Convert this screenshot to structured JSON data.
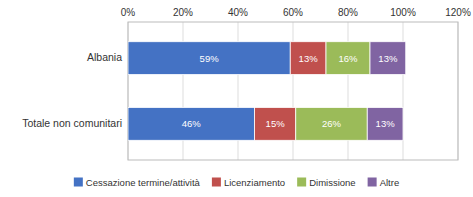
{
  "chart_data": {
    "type": "bar",
    "orientation": "horizontal",
    "stacked": true,
    "data_labels": true,
    "grid": true,
    "legend": "bottom",
    "categories": [
      "Albania",
      "Totale non comunitari"
    ],
    "series": [
      {
        "name": "Cessazione termine/attività",
        "color": "#4472C4",
        "values": [
          59,
          46
        ],
        "value_labels": [
          "59%",
          "46%"
        ]
      },
      {
        "name": "Licenziamento",
        "color": "#C0504D",
        "values": [
          13,
          15
        ],
        "value_labels": [
          "13%",
          "15%"
        ]
      },
      {
        "name": "Dimissione",
        "color": "#9BBB59",
        "values": [
          16,
          26
        ],
        "value_labels": [
          "16%",
          "26%"
        ]
      },
      {
        "name": "Altre",
        "color": "#8064A2",
        "values": [
          13,
          13
        ],
        "value_labels": [
          "13%",
          "13%"
        ]
      }
    ],
    "xlim": [
      0,
      120
    ],
    "xticks": [
      {
        "value": 0,
        "label": "0%"
      },
      {
        "value": 20,
        "label": "20%"
      },
      {
        "value": 40,
        "label": "40%"
      },
      {
        "value": 60,
        "label": "60%"
      },
      {
        "value": 80,
        "label": "80%"
      },
      {
        "value": 100,
        "label": "100%"
      },
      {
        "value": 120,
        "label": "120%"
      }
    ]
  }
}
